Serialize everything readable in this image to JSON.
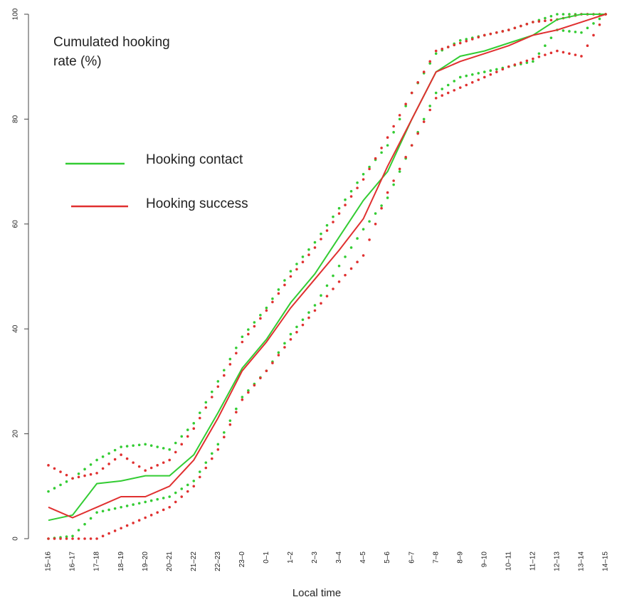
{
  "chart_data": {
    "type": "line",
    "title": "Cumulated hooking\nrate (%)",
    "xlabel": "Local time",
    "ylabel": "",
    "ylim": [
      0,
      100
    ],
    "yticks": [
      0,
      20,
      40,
      60,
      80,
      100
    ],
    "categories": [
      "15–16",
      "16–17",
      "17–18",
      "18–19",
      "19–20",
      "20–21",
      "21–22",
      "22–23",
      "23–0",
      "0–1",
      "1–2",
      "2–3",
      "3–4",
      "4–5",
      "5–6",
      "6–7",
      "7–8",
      "8–9",
      "9–10",
      "10–11",
      "11–12",
      "12–13",
      "13–14",
      "14–15"
    ],
    "legend_position": "top-left",
    "grid": false,
    "series": [
      {
        "name": "Hooking contact",
        "color": "#33cc33",
        "style": "solid",
        "values": [
          3.5,
          4.5,
          10.5,
          11,
          12,
          12,
          16,
          24,
          32.5,
          38,
          45,
          50.5,
          57.5,
          64.5,
          70,
          80,
          89,
          92,
          93,
          94.5,
          96,
          99,
          100,
          100
        ]
      },
      {
        "name": "Hooking success",
        "color": "#e03030",
        "style": "solid",
        "values": [
          6,
          4,
          6,
          8,
          8,
          10,
          15,
          23,
          32,
          37.5,
          44,
          49.5,
          55,
          61,
          71,
          80,
          89,
          91,
          92.5,
          94,
          96,
          97,
          98.5,
          100
        ]
      }
    ],
    "confidence_bands": [
      {
        "color": "#33cc33",
        "bound": "upper",
        "values": [
          9,
          11.5,
          15,
          17.5,
          18,
          17,
          22,
          30,
          38.5,
          44,
          51,
          56.5,
          63,
          69.5,
          75,
          85,
          92.5,
          95,
          96,
          97,
          98.5,
          100,
          100,
          100
        ]
      },
      {
        "color": "#33cc33",
        "bound": "lower",
        "values": [
          0,
          0.5,
          5,
          6,
          7,
          8,
          11,
          18,
          27,
          32,
          39,
          44.5,
          52,
          59,
          65,
          75,
          85,
          88,
          89,
          90,
          91,
          97,
          96.5,
          100
        ]
      },
      {
        "color": "#e03030",
        "bound": "upper",
        "values": [
          14,
          11.5,
          12.5,
          16,
          13,
          15,
          21,
          29,
          37.5,
          43.5,
          50,
          55.5,
          62,
          68.5,
          76.5,
          85,
          93,
          94.5,
          96,
          97,
          98.5,
          99,
          100,
          100
        ]
      },
      {
        "color": "#e03030",
        "bound": "lower",
        "values": [
          0,
          0,
          0,
          2,
          4,
          6,
          10,
          17,
          26.5,
          32,
          38,
          43.5,
          49,
          54,
          66,
          75,
          84,
          86,
          88,
          90,
          91.5,
          93,
          92,
          100
        ]
      }
    ]
  }
}
